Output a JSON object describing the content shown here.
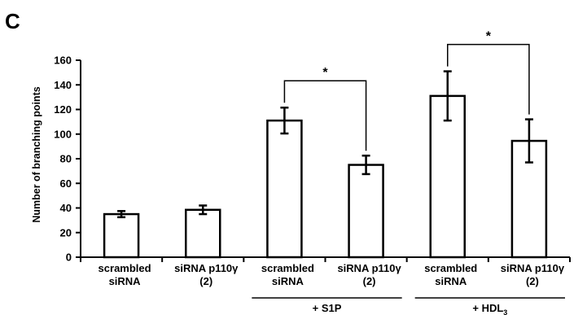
{
  "panel_label": "C",
  "chart_data": {
    "type": "bar",
    "ylabel": "Number of  branching points",
    "xlabel": "",
    "ylim": [
      0,
      160
    ],
    "yticks": [
      0,
      20,
      40,
      60,
      80,
      100,
      120,
      140,
      160
    ],
    "grid": false,
    "categories": [
      [
        "scrambled",
        "siRNA"
      ],
      [
        "siRNA p110γ",
        "(2)"
      ],
      [
        "scrambled",
        "siRNA"
      ],
      [
        "siRNA p110γ",
        "(2)"
      ],
      [
        "scrambled",
        "siRNA"
      ],
      [
        "siRNA p110γ",
        "(2)"
      ]
    ],
    "values": [
      35,
      38.5,
      111,
      75,
      131,
      94.5
    ],
    "errors": [
      2.5,
      3.5,
      10.5,
      7.5,
      20,
      17.5
    ],
    "groups": [
      {
        "label": "+ S1P",
        "categories": [
          2,
          3
        ]
      },
      {
        "label": "+ HDL3",
        "label_main": "+ HDL",
        "label_sub": "3",
        "categories": [
          4,
          5
        ]
      }
    ],
    "significance": [
      {
        "between": [
          2,
          3
        ],
        "label": "*"
      },
      {
        "between": [
          4,
          5
        ],
        "label": "*"
      }
    ],
    "colors": {
      "bar_fill": "#ffffff",
      "bar_stroke": "#000000"
    }
  }
}
